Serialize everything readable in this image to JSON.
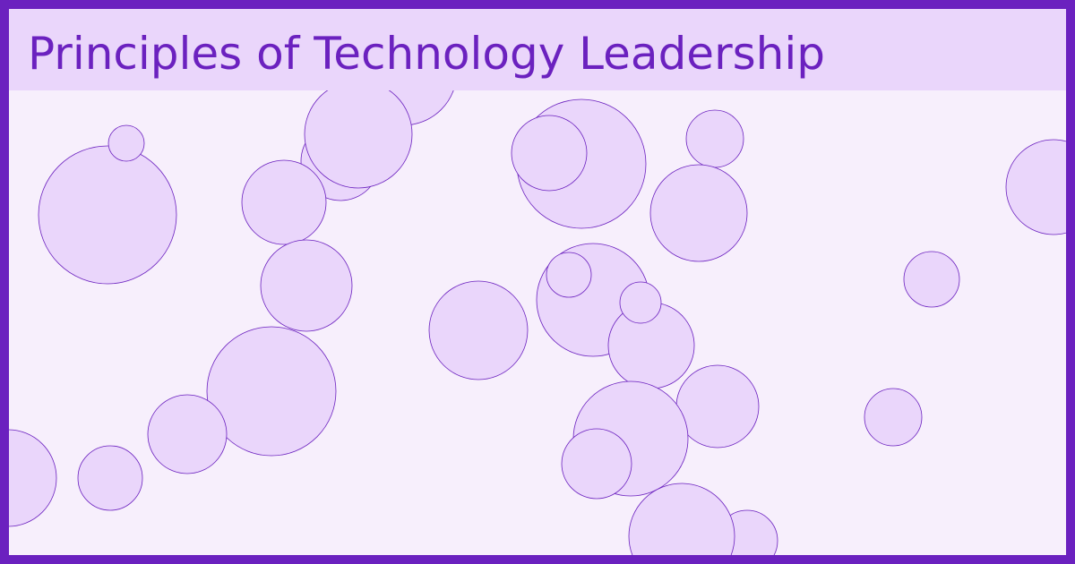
{
  "title": "Principles of Technology Leadership",
  "colors": {
    "border": "#6b21bf",
    "background": "#f7effc",
    "title_band": "#ead6fb",
    "title_text": "#6b21bf",
    "bubble_fill": "#ead6fb",
    "bubble_stroke": "#6b21bf"
  }
}
